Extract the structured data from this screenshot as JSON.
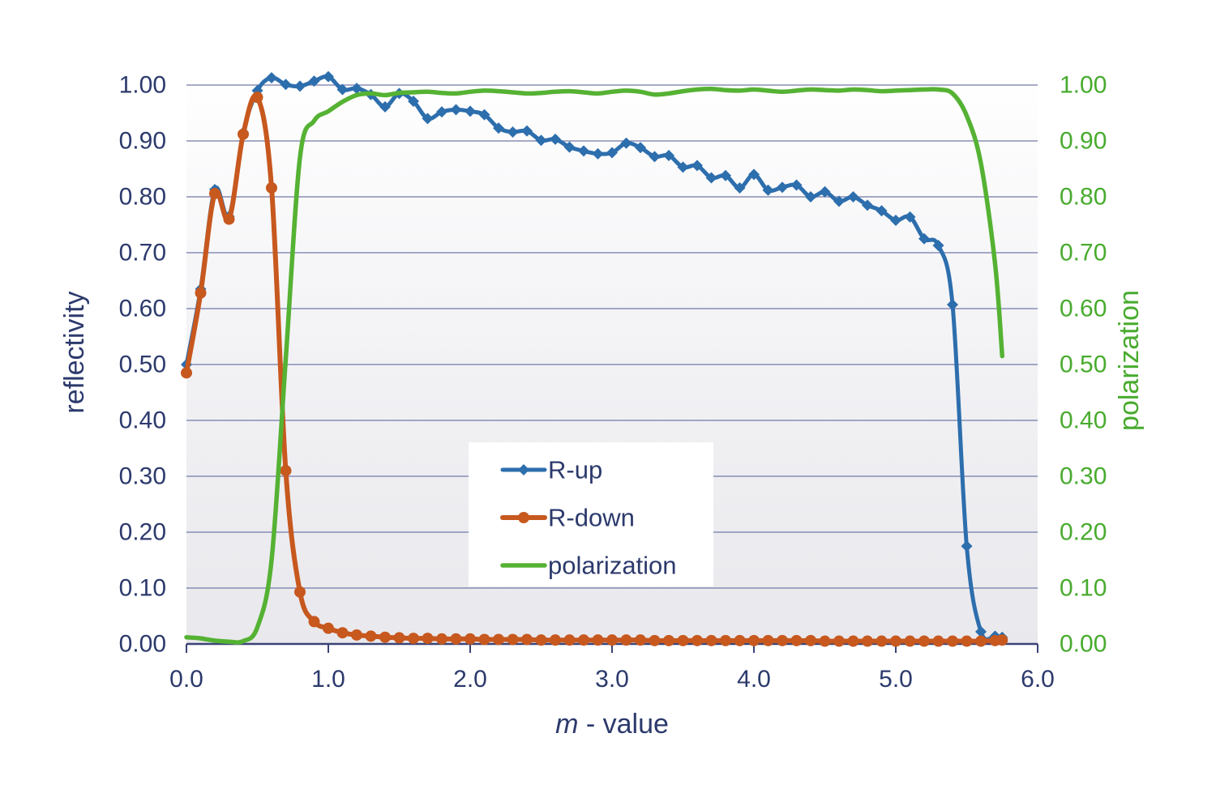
{
  "figure": {
    "background": "#ffffff",
    "text_color": "#2C3A6C",
    "gridline_color": "#7379A7",
    "axis_line_color": "#3A4375",
    "plot_bg_top": "#ffffff",
    "plot_bg_mid": "#f1f1f4",
    "plot_bg_bottom": "#e9e9ed",
    "legend_bg": "#ffffff"
  },
  "chart_data": {
    "type": "line",
    "title": "",
    "xlabel_italic": "m",
    "xlabel_rest": " - value",
    "ylabel_left": "reflectivity",
    "ylabel_right": "polarization",
    "left_axis_color": "#2C3A6C",
    "right_axis_color": "#48AB2E",
    "xlim": [
      0.0,
      6.0
    ],
    "ylim_left": [
      0.0,
      1.0
    ],
    "ylim_right": [
      0.0,
      1.0
    ],
    "grid": true,
    "legend_position": "inside-center",
    "xtick_values": [
      0,
      1,
      2,
      3,
      4,
      5,
      6
    ],
    "xtick_labels": [
      "0.0",
      "1.0",
      "2.0",
      "3.0",
      "4.0",
      "5.0",
      "6.0"
    ],
    "ytick_values": [
      0,
      0.1,
      0.2,
      0.3,
      0.4,
      0.5,
      0.6,
      0.7,
      0.8,
      0.9,
      1.0
    ],
    "ytick_labels_left": [
      "0.00",
      "0.10",
      "0.20",
      "0.30",
      "0.40",
      "0.50",
      "0.60",
      "0.70",
      "0.80",
      "0.90",
      "1.00"
    ],
    "ytick_labels_right": [
      "0.00",
      "0.10",
      "0.20",
      "0.30",
      "0.40",
      "0.50",
      "0.60",
      "0.70",
      "0.80",
      "0.90",
      "1.00"
    ],
    "x": [
      0.0,
      0.1,
      0.2,
      0.3,
      0.4,
      0.5,
      0.6,
      0.7,
      0.8,
      0.9,
      1.0,
      1.1,
      1.2,
      1.3,
      1.4,
      1.5,
      1.6,
      1.7,
      1.8,
      1.9,
      2.0,
      2.1,
      2.2,
      2.3,
      2.4,
      2.5,
      2.6,
      2.7,
      2.8,
      2.9,
      3.0,
      3.1,
      3.2,
      3.3,
      3.4,
      3.5,
      3.6,
      3.7,
      3.8,
      3.9,
      4.0,
      4.1,
      4.2,
      4.3,
      4.4,
      4.5,
      4.6,
      4.7,
      4.8,
      4.9,
      5.0,
      5.1,
      5.2,
      5.3,
      5.4,
      5.5,
      5.6,
      5.7,
      5.75
    ],
    "series": [
      {
        "name": "R-up",
        "axis": "left",
        "color": "#2D6EAD",
        "marker": "diamond",
        "line_width": 5,
        "smooth": true,
        "values": [
          0.5,
          0.635,
          0.813,
          0.765,
          0.915,
          0.99,
          1.013,
          1.001,
          0.998,
          1.007,
          1.015,
          0.992,
          0.994,
          0.983,
          0.961,
          0.985,
          0.971,
          0.94,
          0.952,
          0.956,
          0.953,
          0.947,
          0.923,
          0.916,
          0.918,
          0.901,
          0.903,
          0.889,
          0.882,
          0.877,
          0.879,
          0.896,
          0.888,
          0.872,
          0.874,
          0.853,
          0.856,
          0.834,
          0.838,
          0.816,
          0.84,
          0.812,
          0.817,
          0.821,
          0.8,
          0.809,
          0.792,
          0.8,
          0.785,
          0.775,
          0.758,
          0.764,
          0.725,
          0.713,
          0.607,
          0.175,
          0.022,
          0.014,
          0.012
        ]
      },
      {
        "name": "R-down",
        "axis": "left",
        "color": "#C7581E",
        "marker": "circle",
        "line_width": 6,
        "smooth": true,
        "values": [
          0.485,
          0.628,
          0.806,
          0.76,
          0.912,
          0.978,
          0.816,
          0.31,
          0.093,
          0.04,
          0.028,
          0.02,
          0.016,
          0.014,
          0.012,
          0.011,
          0.01,
          0.01,
          0.009,
          0.009,
          0.009,
          0.008,
          0.008,
          0.008,
          0.008,
          0.007,
          0.007,
          0.007,
          0.007,
          0.007,
          0.007,
          0.007,
          0.007,
          0.006,
          0.006,
          0.006,
          0.006,
          0.006,
          0.006,
          0.006,
          0.006,
          0.006,
          0.006,
          0.006,
          0.006,
          0.005,
          0.005,
          0.005,
          0.005,
          0.005,
          0.005,
          0.005,
          0.005,
          0.005,
          0.005,
          0.005,
          0.005,
          0.006,
          0.007
        ]
      },
      {
        "name": "polarization",
        "axis": "right",
        "color": "#55B233",
        "marker": "none",
        "line_width": 5.5,
        "smooth": true,
        "values": [
          0.012,
          0.01,
          0.006,
          0.004,
          0.005,
          0.03,
          0.15,
          0.51,
          0.87,
          0.936,
          0.953,
          0.97,
          0.982,
          0.985,
          0.982,
          0.986,
          0.987,
          0.988,
          0.986,
          0.985,
          0.988,
          0.99,
          0.989,
          0.987,
          0.985,
          0.986,
          0.988,
          0.989,
          0.987,
          0.985,
          0.988,
          0.99,
          0.988,
          0.983,
          0.985,
          0.989,
          0.992,
          0.993,
          0.991,
          0.99,
          0.992,
          0.99,
          0.988,
          0.99,
          0.992,
          0.991,
          0.99,
          0.992,
          0.991,
          0.989,
          0.99,
          0.991,
          0.992,
          0.992,
          0.985,
          0.945,
          0.86,
          0.68,
          0.515
        ]
      }
    ]
  }
}
